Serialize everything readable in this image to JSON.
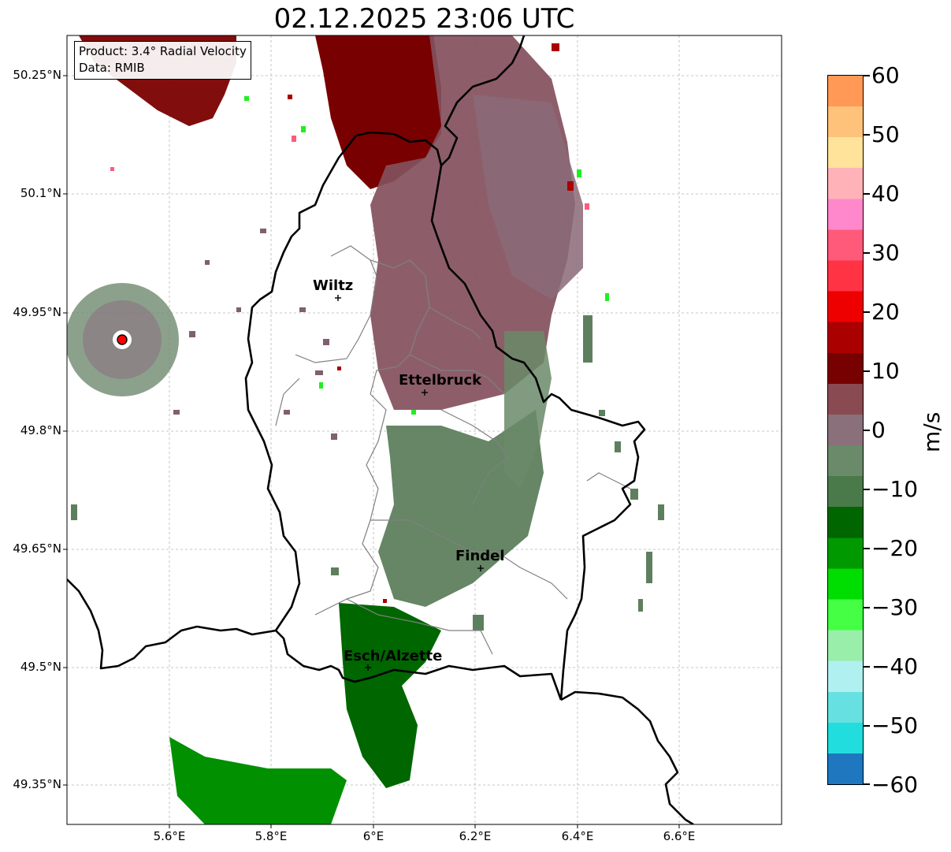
{
  "title": "02.12.2025 23:06 UTC",
  "info": {
    "product": "Product: 3.4° Radial Velocity",
    "source": "Data: RMIB"
  },
  "lat_labels": [
    "50.25°N",
    "50.1°N",
    "49.95°N",
    "49.8°N",
    "49.65°N",
    "49.5°N",
    "49.35°N"
  ],
  "lon_labels": [
    "5.6°E",
    "5.8°E",
    "6°E",
    "6.2°E",
    "6.4°E",
    "6.6°E"
  ],
  "cities": [
    {
      "name": "Wiltz",
      "lon": 5.93,
      "lat": 49.97
    },
    {
      "name": "Ettelbruck",
      "lon": 6.1,
      "lat": 49.85
    },
    {
      "name": "Findel",
      "lon": 6.21,
      "lat": 49.63
    },
    {
      "name": "Esch/Alzette",
      "lon": 5.99,
      "lat": 49.5
    }
  ],
  "radar_site": {
    "lon": 5.505,
    "lat": 49.915,
    "color": "#ff0000"
  },
  "colorbar": {
    "unit": "m/s",
    "min": -60,
    "max": 60,
    "tick_labels": [
      "60",
      "50",
      "40",
      "30",
      "20",
      "10",
      "0",
      "−10",
      "−20",
      "−30",
      "−40",
      "−50",
      "−60"
    ],
    "gradient": [
      "#ff9955",
      "#ffc27a",
      "#ffe39a",
      "#ffb3b8",
      "#ff88cc",
      "#ff5a7a",
      "#ff3344",
      "#ee0000",
      "#aa0000",
      "#770000",
      "#8a4a52",
      "#8a707a",
      "#6a8a6a",
      "#4a7a4a",
      "#006600",
      "#009900",
      "#00dd00",
      "#44ff44",
      "#99eeaa",
      "#b0f0f0",
      "#66e0e0",
      "#22dddd",
      "#1f77c0"
    ]
  },
  "colors": {
    "inbound_dark": "#006600",
    "inbound_mid": "#3d7a3d",
    "inbound_grey": "#5e7f5e",
    "outbound_dark": "#780000",
    "outbound_mid": "#7a3a44",
    "outbound_grey": "#8a6070"
  }
}
